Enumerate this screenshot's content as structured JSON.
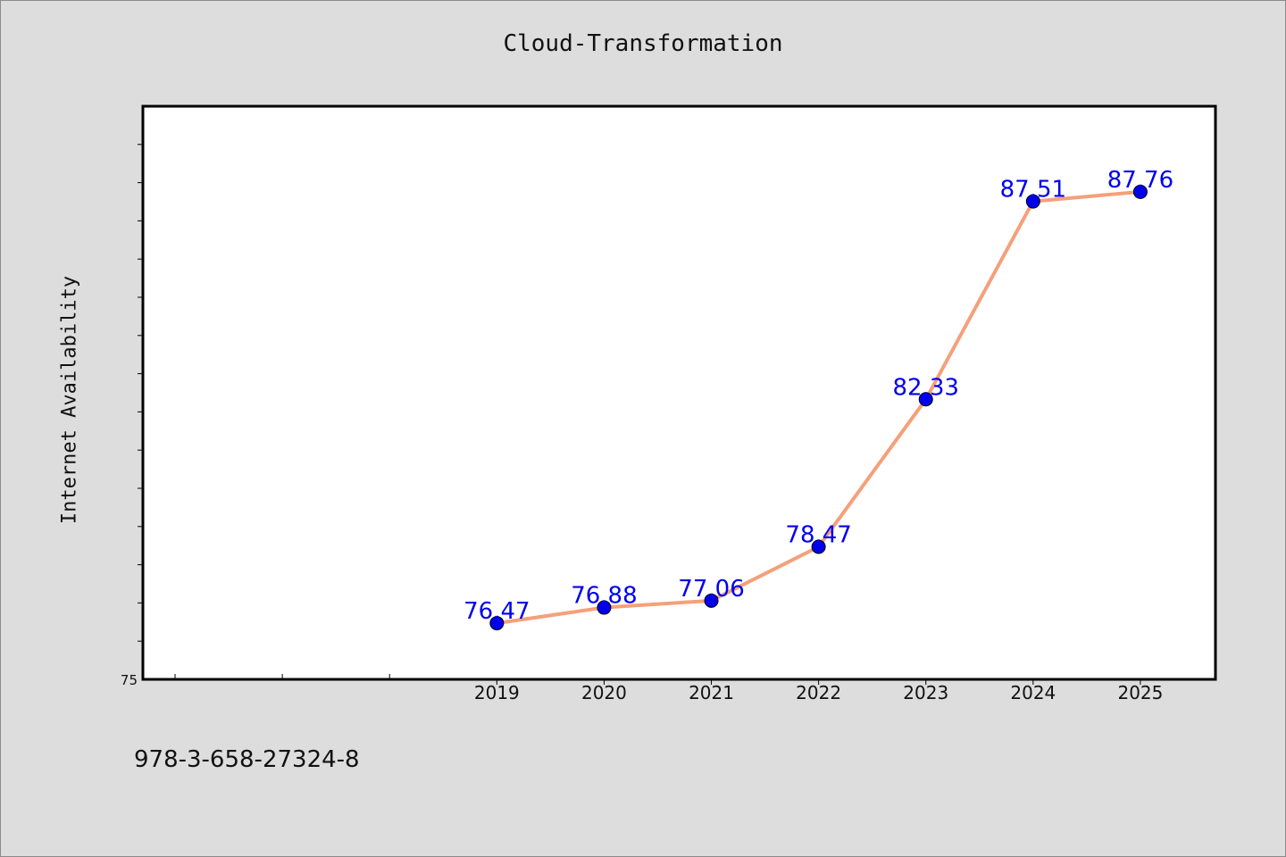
{
  "chart_data": {
    "type": "line",
    "title": "Cloud-Transformation",
    "ylabel": "Internet Availability",
    "xlabel": "",
    "x": [
      "2019",
      "2020",
      "2021",
      "2022",
      "2023",
      "2024",
      "2025"
    ],
    "xlim": [
      2015.7,
      2025.7
    ],
    "ylim": [
      75,
      90
    ],
    "ytick_labels": [
      "75"
    ],
    "series": [
      {
        "values": [
          76.47,
          76.88,
          77.06,
          78.47,
          82.33,
          87.51,
          87.76
        ],
        "data_labels": [
          "76.47",
          "76.88",
          "77.06",
          "78.47",
          "82.33",
          "87.51",
          "87.76"
        ],
        "line_color": "#f5a07a",
        "marker_color": "#0000ee"
      }
    ],
    "grid": false,
    "legend": "none"
  },
  "footer": {
    "code": "978-3-658-27324-8"
  },
  "colors": {
    "background": "#dddddd",
    "plot_area": "#ffffff",
    "label_text": "#0000ee"
  }
}
